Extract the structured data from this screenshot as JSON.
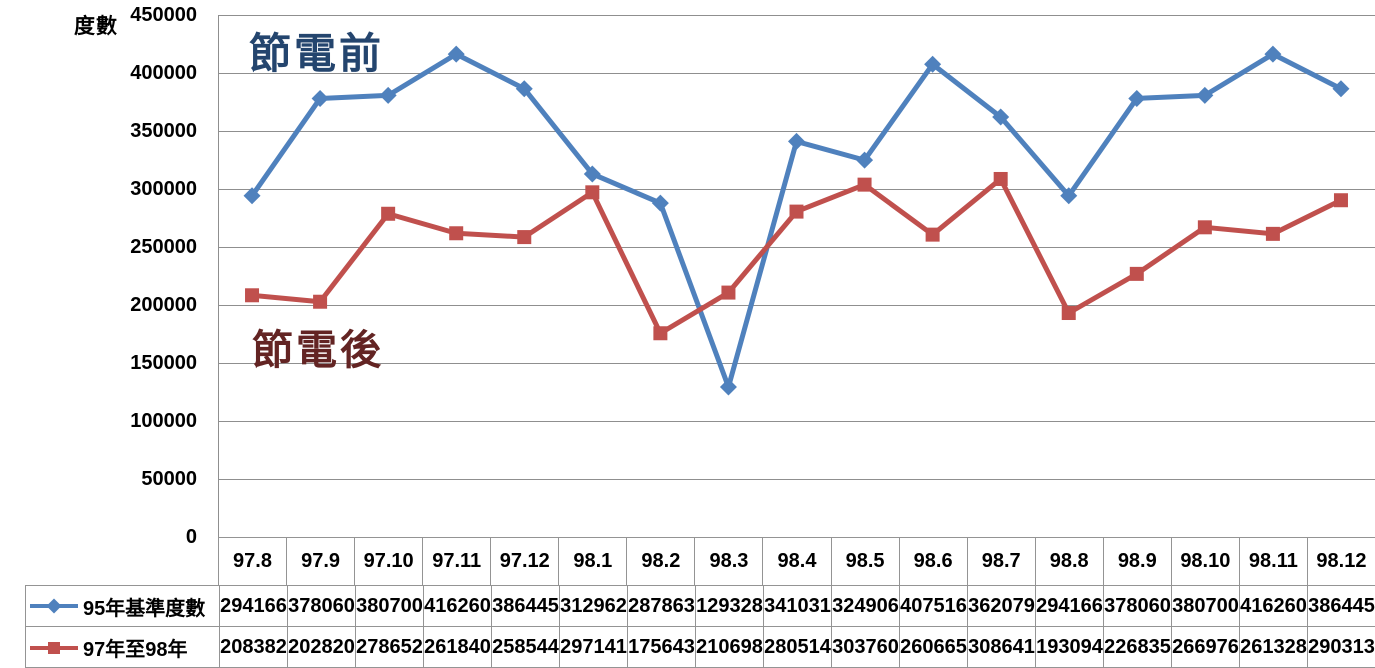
{
  "chart_data": {
    "type": "line",
    "title": "",
    "ylabel": "度數",
    "xlabel": "",
    "ylim": [
      0,
      450000
    ],
    "ytick_step": 50000,
    "yticks": [
      0,
      50000,
      100000,
      150000,
      200000,
      250000,
      300000,
      350000,
      400000,
      450000
    ],
    "grid": "horizontal",
    "legend_position": "data-table-left",
    "categories": [
      "97.8",
      "97.9",
      "97.10",
      "97.11",
      "97.12",
      "98.1",
      "98.2",
      "98.3",
      "98.4",
      "98.5",
      "98.6",
      "98.7",
      "98.8",
      "98.9",
      "98.10",
      "98.11",
      "98.12"
    ],
    "series": [
      {
        "name": "95年基準度數",
        "color": "#4F81BD",
        "marker": "diamond",
        "values": [
          294166,
          378060,
          380700,
          416260,
          386445,
          312962,
          287863,
          129328,
          341031,
          324906,
          407516,
          362079,
          294166,
          378060,
          380700,
          416260,
          386445
        ]
      },
      {
        "name": "97年至98年",
        "color": "#C0504D",
        "marker": "square",
        "values": [
          208382,
          202820,
          278652,
          261840,
          258544,
          297141,
          175643,
          210698,
          280514,
          303760,
          260665,
          308641,
          193094,
          226835,
          266976,
          261328,
          290313
        ]
      }
    ],
    "annotations": [
      {
        "text": "節電前",
        "color": "#24456E",
        "x": 249,
        "y": 33,
        "font_size": 42
      },
      {
        "text": "節電後",
        "color": "#632423",
        "x": 252,
        "y": 330,
        "font_size": 41
      }
    ]
  },
  "colors": {
    "gridline": "#8f8f8f",
    "table_border": "#949494",
    "background": "#ffffff",
    "text": "#000000"
  }
}
